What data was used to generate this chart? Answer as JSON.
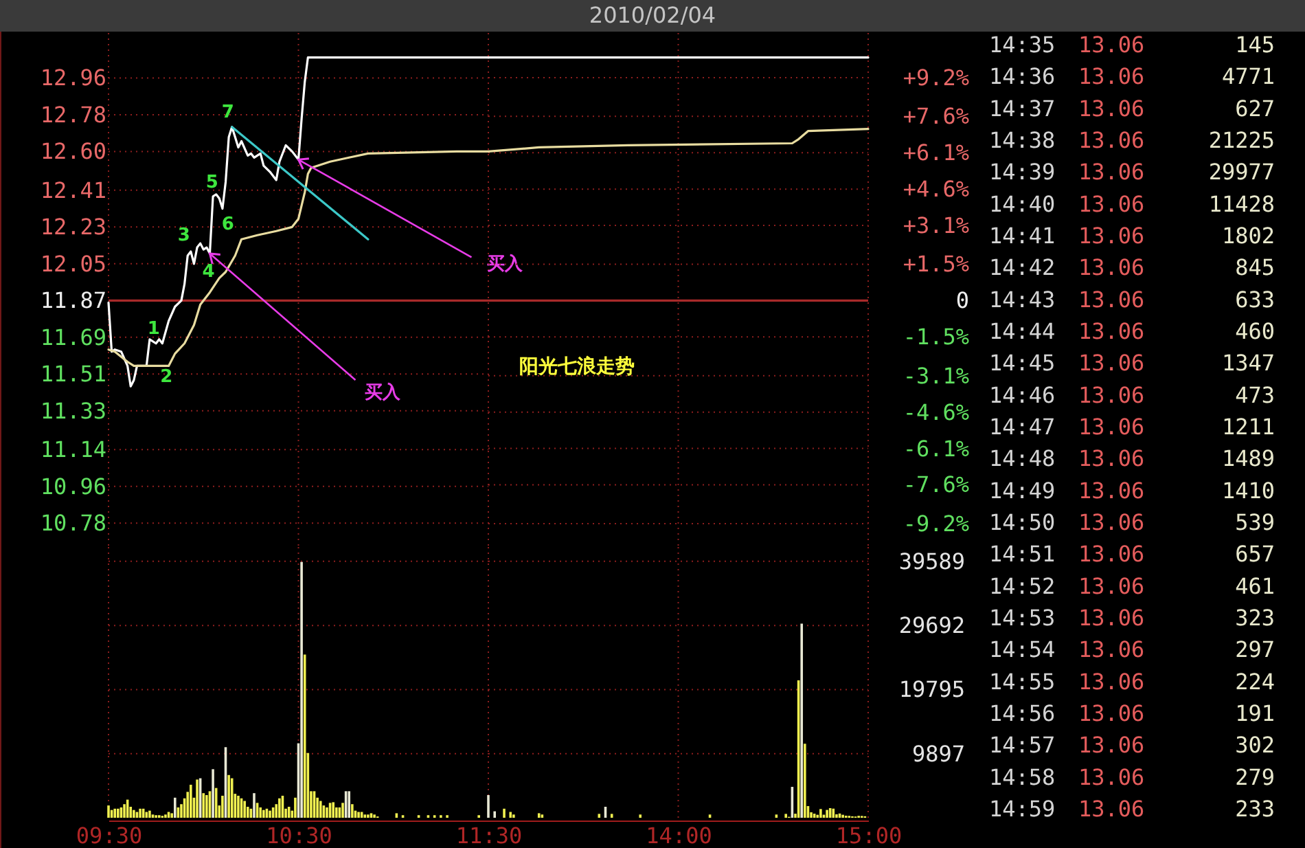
{
  "chart_data": [
    {
      "type": "line",
      "series": [
        {
          "color": "#ffffff",
          "x": [
            "2010-02-04T09:30",
            "2010-02-04T09:31",
            "2010-02-04T09:32",
            "2010-02-04T09:34",
            "2010-02-04T09:36",
            "2010-02-04T09:37",
            "2010-02-04T09:38",
            "2010-02-04T09:39",
            "2010-02-04T09:42",
            "2010-02-04T09:43",
            "2010-02-04T09:45",
            "2010-02-04T09:46",
            "2010-02-04T09:47",
            "2010-02-04T09:49",
            "2010-02-04T09:51",
            "2010-02-04T09:53",
            "2010-02-04T09:54",
            "2010-02-04T09:55",
            "2010-02-04T09:56",
            "2010-02-04T09:57",
            "2010-02-04T09:58",
            "2010-02-04T09:59",
            "2010-02-04T10:00",
            "2010-02-04T10:01",
            "2010-02-04T10:02",
            "2010-02-04T10:03",
            "2010-02-04T10:04",
            "2010-02-04T10:05",
            "2010-02-04T10:06",
            "2010-02-04T10:07",
            "2010-02-04T10:08",
            "2010-02-04T10:09",
            "2010-02-04T10:10",
            "2010-02-04T10:11",
            "2010-02-04T10:12",
            "2010-02-04T10:14",
            "2010-02-04T10:15",
            "2010-02-04T10:16",
            "2010-02-04T10:18",
            "2010-02-04T10:19",
            "2010-02-04T10:21",
            "2010-02-04T10:23",
            "2010-02-04T10:24",
            "2010-02-04T10:26",
            "2010-02-04T10:28",
            "2010-02-04T10:29",
            "2010-02-04T10:30",
            "2010-02-04T10:31",
            "2010-02-04T10:32",
            "2010-02-04T10:33",
            "2010-02-04T11:30"
          ],
          "values": [
            11.86,
            11.62,
            11.63,
            11.62,
            11.55,
            11.45,
            11.48,
            11.55,
            11.55,
            11.68,
            11.66,
            11.68,
            11.66,
            11.77,
            11.84,
            11.87,
            11.95,
            12.09,
            12.11,
            12.05,
            12.13,
            12.15,
            12.12,
            12.13,
            12.1,
            12.38,
            12.39,
            12.37,
            12.32,
            12.45,
            12.67,
            12.72,
            12.67,
            12.62,
            12.65,
            12.58,
            12.59,
            12.57,
            12.59,
            12.53,
            12.5,
            12.46,
            12.55,
            12.63,
            12.6,
            12.58,
            12.56,
            12.76,
            12.94,
            13.06,
            13.06
          ]
        },
        {
          "color": "#e8dca0",
          "x": [
            "2010-02-04T09:30",
            "2010-02-04T09:32",
            "2010-02-04T09:36",
            "2010-02-04T09:38",
            "2010-02-04T09:49",
            "2010-02-04T09:51",
            "2010-02-04T09:54",
            "2010-02-04T09:57",
            "2010-02-04T09:59",
            "2010-02-04T10:02",
            "2010-02-04T10:05",
            "2010-02-04T10:07",
            "2010-02-04T10:10",
            "2010-02-04T10:12",
            "2010-02-04T10:17",
            "2010-02-04T10:23",
            "2010-02-04T10:28",
            "2010-02-04T10:30",
            "2010-02-04T10:32",
            "2010-02-04T10:33",
            "2010-02-04T10:34",
            "2010-02-04T10:40",
            "2010-02-04T10:46",
            "2010-02-04T10:52",
            "2010-02-04T11:20",
            "2010-02-04T11:30"
          ],
          "values": [
            11.63,
            11.62,
            11.57,
            11.55,
            11.55,
            11.61,
            11.66,
            11.75,
            11.85,
            11.91,
            11.98,
            12.01,
            12.09,
            12.17,
            12.19,
            12.21,
            12.23,
            12.27,
            12.4,
            12.49,
            12.52,
            12.55,
            12.57,
            12.59,
            12.6,
            12.6
          ]
        },
        {
          "color": "#3cc8c8",
          "x": [
            "2010-02-04T10:09",
            "2010-02-04T10:52"
          ],
          "values": [
            12.72,
            12.17
          ]
        }
      ],
      "xlim": [
        "2010-02-04T09:30",
        "2010-02-04T11:30"
      ],
      "xticks": [
        {
          "value": "2010-02-04T09:30",
          "label": null
        },
        {
          "value": "2010-02-04T10:30",
          "label": null
        },
        {
          "value": "2010-02-04T11:30",
          "label": null
        }
      ],
      "ylim": [
        10.67,
        13.18
      ],
      "yticks": [
        12.96,
        12.78,
        {
          "value": 12.6,
          "label": "12.60"
        },
        12.41,
        12.23,
        12.05,
        11.87,
        11.69,
        11.51,
        11.33,
        11.14,
        10.96,
        10.78
      ],
      "ref_lines": [
        {
          "axis": "y",
          "value": 11.87,
          "color": "#a82a2a"
        }
      ],
      "grid": true,
      "tick_labels": "y",
      "annotations": [
        {
          "text": "1",
          "x": "2010-02-04T09:46",
          "y": 11.68
        },
        {
          "text": "2",
          "x": "2010-02-04T09:47",
          "y": 11.66
        },
        {
          "text": "3",
          "x": "2010-02-04T09:56",
          "y": 12.11
        },
        {
          "text": "4",
          "x": "2010-02-04T10:02",
          "y": 12.1
        },
        {
          "text": "5",
          "x": "2010-02-04T10:04",
          "y": 12.39
        },
        {
          "text": "6",
          "x": "2010-02-04T10:06",
          "y": 12.32
        },
        {
          "text": "7",
          "x": "2010-02-04T10:09",
          "y": 12.72
        },
        {
          "text": "买入",
          "x": "2010-02-04T10:02",
          "y": 12.1
        },
        {
          "text": "买入",
          "x": "2010-02-04T10:30",
          "y": 12.56
        }
      ]
    },
    {
      "type": "line",
      "title": "2010/02/04",
      "series": [
        {
          "color": "#ffffff",
          "x": [
            "2010-02-04T13:00",
            "2010-02-04T15:00"
          ],
          "values": [
            13.06,
            13.06
          ]
        },
        {
          "color": "#e8dca0",
          "x": [
            "2010-02-04T13:00",
            "2010-02-04T13:16",
            "2010-02-04T13:44",
            "2010-02-04T14:36",
            "2010-02-04T14:38",
            "2010-02-04T14:41",
            "2010-02-04T15:00"
          ],
          "values": [
            12.6,
            12.62,
            12.63,
            12.64,
            12.66,
            12.7,
            12.71
          ]
        }
      ],
      "xlim": [
        "2010-02-04T13:00",
        "2010-02-04T15:00"
      ],
      "xticks": [
        {
          "value": "2010-02-04T14:00",
          "label": null
        },
        {
          "value": "2010-02-04T15:00",
          "label": null
        }
      ],
      "ylim": [
        10.67,
        13.18
      ],
      "y2lim": [
        -10.11,
        11.04
      ],
      "y2ticks": [
        {
          "value": 9.2,
          "label": "+9.2%"
        },
        {
          "value": 7.6,
          "label": "+7.6%"
        },
        {
          "value": 6.1,
          "label": "+6.1%"
        },
        {
          "value": 4.6,
          "label": "+4.6%"
        },
        {
          "value": 3.1,
          "label": "+3.1%"
        },
        {
          "value": 1.5,
          "label": "+1.5%"
        },
        0,
        {
          "value": -1.5,
          "label": "-1.5%"
        },
        {
          "value": -3.1,
          "label": "-3.1%"
        },
        {
          "value": -4.6,
          "label": "-4.6%"
        },
        {
          "value": -6.1,
          "label": "-6.1%"
        },
        {
          "value": -7.6,
          "label": "-7.6%"
        },
        {
          "value": -9.2,
          "label": "-9.2%"
        }
      ],
      "ref_lines": [
        {
          "axis": "y",
          "value": 11.87,
          "color": "#a82a2a"
        }
      ],
      "grid": true,
      "tick_labels": "y",
      "annotations": [
        "阳光七浪走势"
      ]
    },
    {
      "type": "bar",
      "x": [
        "2010-02-04T09:30",
        "2010-02-04T09:31",
        "2010-02-04T09:32",
        "2010-02-04T09:33",
        "2010-02-04T09:34",
        "2010-02-04T09:35",
        "2010-02-04T09:36",
        "2010-02-04T09:37",
        "2010-02-04T09:38",
        "2010-02-04T09:39",
        "2010-02-04T09:40",
        "2010-02-04T09:41",
        "2010-02-04T09:42",
        "2010-02-04T09:43",
        "2010-02-04T09:44",
        "2010-02-04T09:45",
        "2010-02-04T09:46",
        "2010-02-04T09:47",
        "2010-02-04T09:48",
        "2010-02-04T09:49",
        "2010-02-04T09:50",
        "2010-02-04T09:51",
        "2010-02-04T09:52",
        "2010-02-04T09:53",
        "2010-02-04T09:54",
        "2010-02-04T09:55",
        "2010-02-04T09:56",
        "2010-02-04T09:57",
        "2010-02-04T09:58",
        "2010-02-04T09:59",
        "2010-02-04T10:00",
        "2010-02-04T10:01",
        "2010-02-04T10:02",
        "2010-02-04T10:03",
        "2010-02-04T10:04",
        "2010-02-04T10:05",
        "2010-02-04T10:06",
        "2010-02-04T10:07",
        "2010-02-04T10:08",
        "2010-02-04T10:09",
        "2010-02-04T10:10",
        "2010-02-04T10:11",
        "2010-02-04T10:12",
        "2010-02-04T10:13",
        "2010-02-04T10:14",
        "2010-02-04T10:15",
        "2010-02-04T10:16",
        "2010-02-04T10:17",
        "2010-02-04T10:18",
        "2010-02-04T10:19",
        "2010-02-04T10:20",
        "2010-02-04T10:21",
        "2010-02-04T10:22",
        "2010-02-04T10:23",
        "2010-02-04T10:24",
        "2010-02-04T10:25",
        "2010-02-04T10:26",
        "2010-02-04T10:27",
        "2010-02-04T10:28",
        "2010-02-04T10:29",
        "2010-02-04T10:30",
        "2010-02-04T10:31",
        "2010-02-04T10:32",
        "2010-02-04T10:33",
        "2010-02-04T10:34",
        "2010-02-04T10:35",
        "2010-02-04T10:36",
        "2010-02-04T10:37",
        "2010-02-04T10:38",
        "2010-02-04T10:39",
        "2010-02-04T10:40",
        "2010-02-04T10:41",
        "2010-02-04T10:42",
        "2010-02-04T10:43",
        "2010-02-04T10:44",
        "2010-02-04T10:45",
        "2010-02-04T10:46",
        "2010-02-04T10:47",
        "2010-02-04T10:48",
        "2010-02-04T10:49",
        "2010-02-04T10:50",
        "2010-02-04T10:51",
        "2010-02-04T10:52",
        "2010-02-04T10:53",
        "2010-02-04T10:54",
        "2010-02-04T10:55",
        "2010-02-04T11:01",
        "2010-02-04T11:03",
        "2010-02-04T11:08",
        "2010-02-04T11:11",
        "2010-02-04T11:13",
        "2010-02-04T11:15",
        "2010-02-04T11:17",
        "2010-02-04T11:27"
      ],
      "values": [
        1900,
        1200,
        1400,
        1400,
        1600,
        2100,
        2800,
        1700,
        1200,
        900,
        1400,
        1400,
        900,
        1100,
        500,
        400,
        400,
        300,
        500,
        900,
        700,
        3100,
        1600,
        2100,
        3000,
        4000,
        5100,
        3100,
        5900,
        6100,
        3800,
        3500,
        4100,
        7500,
        4600,
        1900,
        3400,
        10900,
        6600,
        6100,
        3700,
        3400,
        3000,
        2600,
        1700,
        1400,
        3800,
        2300,
        1600,
        1200,
        1400,
        1100,
        1600,
        2100,
        3000,
        3400,
        1400,
        1700,
        1100,
        3100,
        11500,
        39500,
        25200,
        10000,
        4100,
        4100,
        3100,
        2600,
        1900,
        1600,
        2300,
        2400,
        1600,
        1600,
        2300,
        4100,
        4100,
        2100,
        1100,
        900,
        900,
        500,
        500,
        700,
        500,
        200,
        700,
        400,
        400,
        400,
        400,
        400,
        400,
        400
      ],
      "colors": [
        "#f0f050",
        "#f0f050",
        "#f0f050",
        "#f0f050",
        "#f0f050",
        "#f0f050",
        "#f0f050",
        "#f0f050",
        "#f0f050",
        "#f0f050",
        "#f0f050",
        "#f0f050",
        "#f0f050",
        "#f0f050",
        "#f0f050",
        "#f0f050",
        "#f0f050",
        "#f0f050",
        "#f0f050",
        "#f0f050",
        "#f0f050",
        "#e8e8d4",
        "#f0f050",
        "#f0f050",
        "#f0f050",
        "#f0f050",
        "#f0f050",
        "#f0f050",
        "#f0f050",
        "#e8e8d4",
        "#f0f050",
        "#f0f050",
        "#f0f050",
        "#e8e8d4",
        "#f0f050",
        "#f0f050",
        "#f0f050",
        "#e8e8d4",
        "#f0f050",
        "#f0f050",
        "#f0f050",
        "#f0f050",
        "#f0f050",
        "#f0f050",
        "#f0f050",
        "#f0f050",
        "#e8e8d4",
        "#f0f050",
        "#f0f050",
        "#f0f050",
        "#f0f050",
        "#f0f050",
        "#f0f050",
        "#f0f050",
        "#f0f050",
        "#f0f050",
        "#f0f050",
        "#f0f050",
        "#f0f050",
        "#f0f050",
        "#e8e8d4",
        "#e8e8d4",
        "#f0f050",
        "#f0f050",
        "#f0f050",
        "#f0f050",
        "#f0f050",
        "#f0f050",
        "#f0f050",
        "#f0f050",
        "#f0f050",
        "#f0f050",
        "#f0f050",
        "#f0f050",
        "#f0f050",
        "#e8e8d4",
        "#e8e8d4",
        "#f0f050",
        "#f0f050",
        "#f0f050",
        "#f0f050",
        "#f0f050",
        "#f0f050",
        "#f0f050",
        "#f0f050",
        "#f0f050",
        "#f0f050",
        "#f0f050",
        "#f0f050",
        "#f0f050",
        "#f0f050",
        "#f0f050",
        "#f0f050",
        "#f0f050"
      ],
      "xlim": [
        "2010-02-04T09:30",
        "2010-02-04T11:30"
      ],
      "xticks": [
        {
          "value": "2010-02-04T09:30",
          "label": "09:30"
        },
        {
          "value": "2010-02-04T10:30",
          "label": "10:30"
        },
        {
          "value": "2010-02-04T11:30",
          "label": "11:30"
        }
      ],
      "ylim": [
        0,
        41800
      ],
      "yticks": [
        {
          "value": 9897,
          "label": null
        },
        {
          "value": 19795,
          "label": null
        },
        {
          "value": 29692,
          "label": null
        },
        {
          "value": 39589,
          "label": null
        }
      ],
      "grid": true,
      "tick_labels": "x"
    },
    {
      "type": "bar",
      "x": [
        "2010-02-04T13:00",
        "2010-02-04T13:02",
        "2010-02-04T13:05",
        "2010-02-04T13:07",
        "2010-02-04T13:08",
        "2010-02-04T13:16",
        "2010-02-04T13:17",
        "2010-02-04T13:35",
        "2010-02-04T13:37",
        "2010-02-04T13:39",
        "2010-02-04T13:48",
        "2010-02-04T14:10",
        "2010-02-04T14:31",
        "2010-02-04T14:34",
        "2010-02-04T14:35",
        "2010-02-04T14:36",
        "2010-02-04T14:37",
        "2010-02-04T14:38",
        "2010-02-04T14:39",
        "2010-02-04T14:40",
        "2010-02-04T14:41",
        "2010-02-04T14:42",
        "2010-02-04T14:43",
        "2010-02-04T14:44",
        "2010-02-04T14:45",
        "2010-02-04T14:46",
        "2010-02-04T14:47",
        "2010-02-04T14:48",
        "2010-02-04T14:49",
        "2010-02-04T14:50",
        "2010-02-04T14:51",
        "2010-02-04T14:52",
        "2010-02-04T14:53",
        "2010-02-04T14:54",
        "2010-02-04T14:55",
        "2010-02-04T14:56",
        "2010-02-04T14:57",
        "2010-02-04T14:58",
        "2010-02-04T14:59"
      ],
      "values": [
        3500,
        1000,
        1400,
        900,
        500,
        700,
        500,
        600,
        1700,
        600,
        500,
        500,
        500,
        600,
        145,
        4771,
        627,
        21225,
        29977,
        11428,
        1802,
        845,
        633,
        460,
        1347,
        473,
        1211,
        1489,
        1410,
        539,
        657,
        461,
        323,
        297,
        224,
        191,
        302,
        279,
        233
      ],
      "colors": [
        "#e8e8d4",
        "#e8e8d4",
        "#f0f050",
        "#f0f050",
        "#f0f050",
        "#f0f050",
        "#f0f050",
        "#f0f050",
        "#e8e8d4",
        "#f0f050",
        "#f0f050",
        "#f0f050",
        "#f0f050",
        "#f0f050",
        "#f0f050",
        "#e8e8d4",
        "#f0f050",
        "#f0f050",
        "#e8e8d4",
        "#f0f050",
        "#f0f050",
        "#f0f050",
        "#f0f050",
        "#f0f050",
        "#f0f050",
        "#f0f050",
        "#f0f050",
        "#f0f050",
        "#f0f050",
        "#f0f050",
        "#f0f050",
        "#f0f050",
        "#f0f050",
        "#f0f050",
        "#f0f050",
        "#f0f050",
        "#f0f050",
        "#f0f050",
        "#f0f050"
      ],
      "xlim": [
        "2010-02-04T13:00",
        "2010-02-04T15:00"
      ],
      "xticks": [
        {
          "value": "2010-02-04T14:00",
          "label": "14:00"
        },
        {
          "value": "2010-02-04T15:00",
          "label": "15:00"
        }
      ],
      "ylim": [
        0,
        41800
      ],
      "yticks": [
        9897,
        19795,
        29692,
        39589
      ],
      "grid": true,
      "annotations": [
        "14:35",
        "13.06",
        "145",
        "14:36",
        "13.06",
        "4771",
        "14:37",
        "13.06",
        "627",
        "14:38",
        "13.06",
        "21225",
        "14:39",
        "13.06",
        "29977",
        "14:40",
        "13.06",
        "11428",
        "14:41",
        "13.06",
        "1802",
        "14:42",
        "13.06",
        "845",
        "14:43",
        "13.06",
        "633",
        "14:44",
        "13.06",
        "460",
        "14:45",
        "13.06",
        "1347",
        "14:46",
        "13.06",
        "473",
        "14:47",
        "13.06",
        "1211",
        "14:48",
        "13.06",
        "1489",
        "14:49",
        "13.06",
        "1410",
        "14:50",
        "13.06",
        "539",
        "14:51",
        "13.06",
        "657",
        "14:52",
        "13.06",
        "461",
        "14:53",
        "13.06",
        "323",
        "14:54",
        "13.06",
        "297",
        "14:55",
        "13.06",
        "224",
        "14:56",
        "13.06",
        "191",
        "14:57",
        "13.06",
        "302",
        "14:58",
        "13.06",
        "279",
        "14:59",
        "13.06",
        "233"
      ]
    }
  ]
}
